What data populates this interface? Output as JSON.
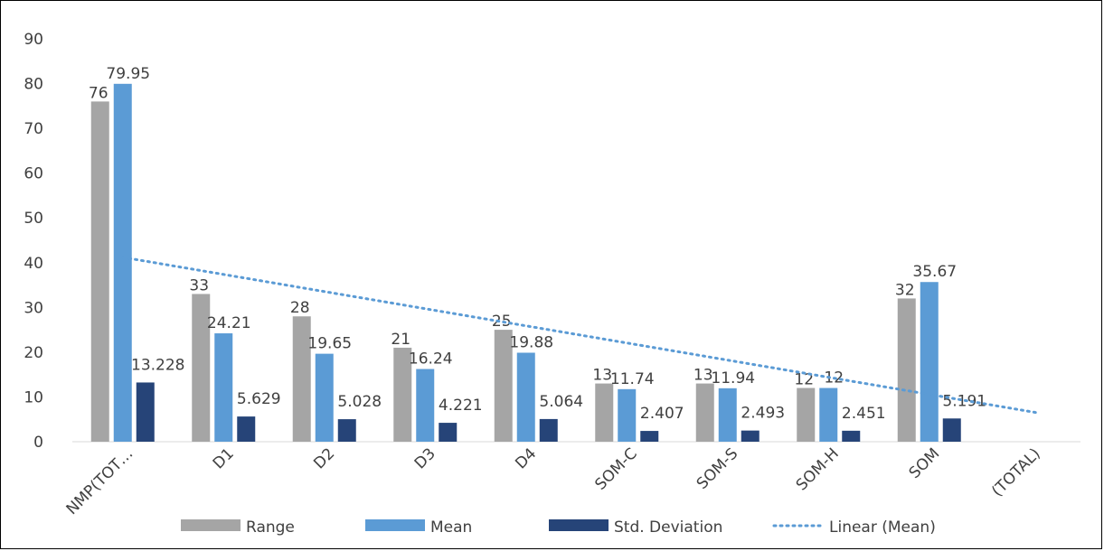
{
  "chart_data": {
    "type": "bar",
    "categories": [
      "NMP(TOT…",
      "D1",
      "D2",
      "D3",
      "D4",
      "SOM-C",
      "SOM-S",
      "SOM-H",
      "SOM",
      "(TOTAL)"
    ],
    "series": [
      {
        "name": "Range",
        "color": "#A5A5A5",
        "values": [
          76,
          33,
          28,
          21,
          25,
          13,
          13,
          12,
          32,
          null
        ],
        "labels": [
          "76",
          "33",
          "28",
          "21",
          "25",
          "13",
          "13",
          "12",
          "32",
          ""
        ]
      },
      {
        "name": "Mean",
        "color": "#5B9BD5",
        "values": [
          79.95,
          24.21,
          19.65,
          16.24,
          19.88,
          11.74,
          11.94,
          12,
          35.67,
          null
        ],
        "labels": [
          "79.95",
          "24.21",
          "19.65",
          "16.24",
          "19.88",
          "11.74",
          "11.94",
          "12",
          "35.67",
          ""
        ]
      },
      {
        "name": "Std. Deviation",
        "color": "#264478",
        "values": [
          13.228,
          5.629,
          5.028,
          4.221,
          5.064,
          2.407,
          2.493,
          2.451,
          5.191,
          null
        ],
        "labels": [
          "13.228",
          "5.629",
          "5.028",
          "4.221",
          "5.064",
          "2.407",
          "2.493",
          "2.451",
          "5.191",
          ""
        ]
      }
    ],
    "trendline": {
      "name": "Linear (Mean)",
      "color": "#5B9BD5",
      "start": 41.2,
      "end": 6.4
    },
    "yticks": [
      "0",
      "10",
      "20",
      "30",
      "40",
      "50",
      "60",
      "70",
      "80",
      "90"
    ],
    "ylim": [
      0,
      90
    ],
    "legend_position": "bottom",
    "grid": false
  }
}
